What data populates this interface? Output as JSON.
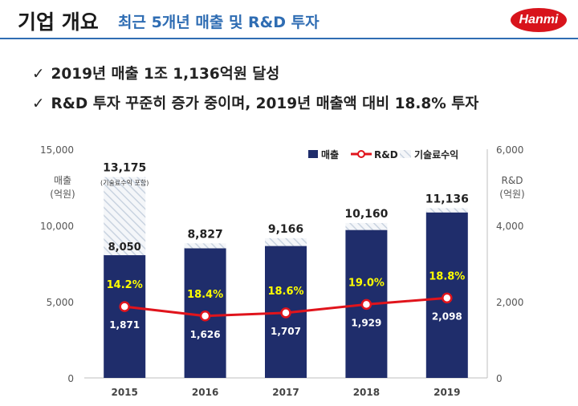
{
  "header": {
    "title": "기업 개요",
    "subtitle": "최근 5개년 매출 및 R&D 투자",
    "logo_text": "Hanmi",
    "accent_color": "#2f6db3",
    "logo_color": "#d8141c"
  },
  "bullets": [
    {
      "check": "✓",
      "text": "2019년 매출 1조 1,136억원 달성"
    },
    {
      "check": "✓",
      "text": "R&D 투자 꾸준히 증가 중이며, 2019년 매출액 대비 18.8% 투자"
    }
  ],
  "chart_data": {
    "type": "bar",
    "categories": [
      "2015",
      "2016",
      "2017",
      "2018",
      "2019"
    ],
    "series": [
      {
        "name": "매출",
        "values": [
          8050,
          8500,
          8650,
          9700,
          10850
        ],
        "color": "#1f2d6b"
      },
      {
        "name": "기술료수익",
        "values": [
          5125,
          327,
          516,
          460,
          286
        ],
        "color": "#c9d3e0"
      },
      {
        "name": "R&D",
        "values": [
          1871,
          1626,
          1707,
          1929,
          2098
        ],
        "color": "#e0141c"
      }
    ],
    "totals": [
      "13,175",
      "8,827",
      "9,166",
      "10,160",
      "11,136"
    ],
    "inner_labels": [
      "8,050",
      "",
      "",
      "",
      ""
    ],
    "ratios": [
      "14.2%",
      "18.4%",
      "18.6%",
      "19.0%",
      "18.8%"
    ],
    "rd_labels": [
      "1,871",
      "1,626",
      "1,707",
      "1,929",
      "2,098"
    ],
    "first_total_note": "(기술료수익 포함)",
    "ylabel_left": [
      "매출",
      "(억원)"
    ],
    "ylabel_right": [
      "R&D",
      "(억원)"
    ],
    "yticks_left": [
      "0",
      "5,000",
      "10,000",
      "15,000"
    ],
    "yticks_right": [
      "0",
      "2,000",
      "4,000",
      "6,000"
    ],
    "ylim_left": [
      0,
      15000
    ],
    "ylim_right": [
      0,
      6000
    ],
    "legend": [
      "매출",
      "R&D",
      "기술료수익"
    ],
    "legend_position": "top-right",
    "ratio_color": "#ffff00"
  }
}
